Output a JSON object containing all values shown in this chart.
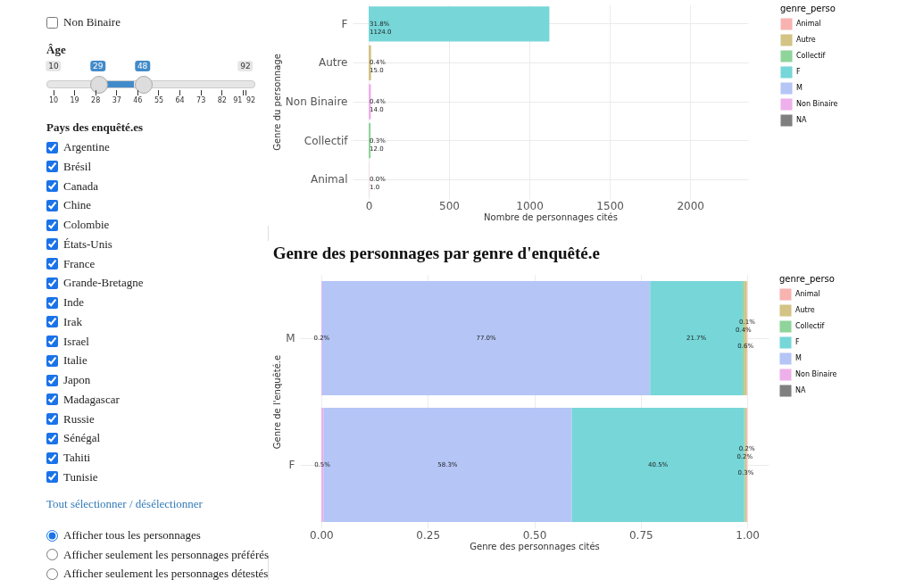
{
  "chart_data": [
    {
      "type": "other",
      "annotations": [
        "Non Binaire",
        "Âge",
        "10",
        "29",
        "48",
        "92",
        "10",
        "19",
        "28",
        "37",
        "46",
        "55",
        "64",
        "73",
        "82",
        "91",
        "92",
        "Pays des enquêté.es",
        "Argentine",
        "Brésil",
        "Canada",
        "Chine",
        "Colombie",
        "États-Unis",
        "France",
        "Grande-Bretagne",
        "Inde",
        "Irak",
        "Israel",
        "Italie",
        "Japon",
        "Madagascar",
        "Russie",
        "Sénégal",
        "Tahiti",
        "Tunisie",
        "Tout sélectionner / désélectionner",
        "Afficher tous les personnages",
        "Afficher seulement les personnages préférés",
        "Afficher seulement les personnages détestés"
      ]
    },
    {
      "type": "bar",
      "orientation": "horizontal",
      "xlabel": "Nombre de personnages cités",
      "ylabel": "Genre du personnage",
      "legend_title": "genre_perso",
      "legend": "right",
      "grid": true,
      "categories": [
        "F",
        "Autre",
        "Non Binaire",
        "Collectif",
        "Animal"
      ],
      "xlim": [
        -100,
        2360
      ],
      "xticks": [
        0,
        500,
        1000,
        1500,
        2000
      ],
      "series": [
        {
          "name": "NA",
          "color": "#7f7f7f",
          "values": [
            null,
            null,
            null,
            null,
            null
          ]
        },
        {
          "name": "Non Binaire",
          "color": "#eeb0ea",
          "values": [
            null,
            null,
            14,
            null,
            null
          ],
          "value_labels": [
            null,
            null,
            "0.4%\n14.0",
            null,
            null
          ]
        },
        {
          "name": "M",
          "color": "#b4c5f6",
          "values": [
            null,
            null,
            null,
            null,
            null
          ]
        },
        {
          "name": "F",
          "color": "#76d6d8",
          "values": [
            1124,
            null,
            null,
            null,
            null
          ],
          "value_labels": [
            "31.8%\n1124.0",
            null,
            null,
            null,
            null
          ]
        },
        {
          "name": "Collectif",
          "color": "#8fd49a",
          "values": [
            null,
            null,
            null,
            12,
            null
          ],
          "value_labels": [
            null,
            null,
            null,
            "0.3%\n12.0",
            null
          ]
        },
        {
          "name": "Autre",
          "color": "#d3c385",
          "values": [
            null,
            15,
            null,
            null,
            null
          ],
          "value_labels": [
            null,
            "0.4%\n15.0",
            null,
            null,
            null
          ]
        },
        {
          "name": "Animal",
          "color": "#f8b3b0",
          "values": [
            null,
            null,
            null,
            null,
            1
          ],
          "value_labels": [
            null,
            null,
            null,
            null,
            "0.0%\n1.0"
          ]
        }
      ]
    },
    {
      "type": "bar",
      "orientation": "horizontal",
      "stacked": true,
      "title": "Genre des personnages par genre d'enquêté.e",
      "xlabel": "Genre des personnages cités",
      "ylabel": "Genre de l'enquêté.e",
      "legend_title": "genre_perso",
      "legend": "right",
      "grid": true,
      "categories": [
        "M",
        "F"
      ],
      "xlim": [
        -0.05,
        1.05
      ],
      "xticks": [
        {
          "value": 0,
          "label": "0.00"
        },
        {
          "value": 0.25,
          "label": "0.25"
        },
        {
          "value": 0.5,
          "label": "0.50"
        },
        {
          "value": 0.75,
          "label": "0.75"
        },
        {
          "value": 1,
          "label": "1.00"
        }
      ],
      "series": [
        {
          "name": "NA",
          "color": "#7f7f7f",
          "values": [
            null,
            null
          ]
        },
        {
          "name": "Non Binaire",
          "color": "#eeb0ea",
          "values": [
            0.002,
            0.005
          ],
          "value_labels": [
            "0.2%",
            "0.5%"
          ]
        },
        {
          "name": "M",
          "color": "#b4c5f6",
          "values": [
            0.77,
            0.583
          ],
          "value_labels": [
            "77.0%",
            "58.3%"
          ]
        },
        {
          "name": "F",
          "color": "#76d6d8",
          "values": [
            0.217,
            0.405
          ],
          "value_labels": [
            "21.7%",
            "40.5%"
          ]
        },
        {
          "name": "Collectif",
          "color": "#8fd49a",
          "values": [
            0.004,
            0.002
          ],
          "value_labels": [
            "0.4%",
            "0.2%"
          ]
        },
        {
          "name": "Autre",
          "color": "#d3c385",
          "values": [
            0.006,
            0.003
          ],
          "value_labels": [
            "0.6%",
            "0.3%"
          ]
        },
        {
          "name": "Animal",
          "color": "#f8b3b0",
          "values": [
            0.001,
            0.002
          ],
          "value_labels": [
            "0.1%",
            "0.2%"
          ]
        }
      ]
    }
  ]
}
